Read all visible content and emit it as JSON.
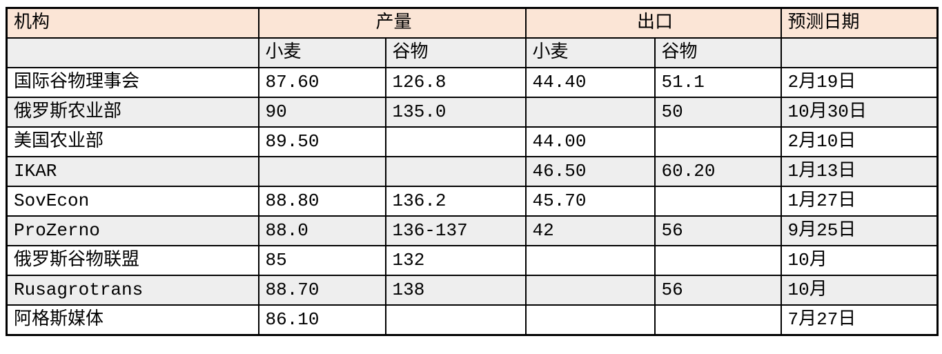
{
  "table": {
    "header": {
      "org": "机构",
      "production": "产量",
      "export": "出口",
      "forecast_date": "预测日期"
    },
    "subheader": {
      "production_wheat": "小麦",
      "production_grain": "谷物",
      "export_wheat": "小麦",
      "export_grain": "谷物"
    },
    "rows": [
      {
        "org": "国际谷物理事会",
        "production_wheat": "87.60",
        "production_grain": "126.8",
        "export_wheat": "44.40",
        "export_grain": "51.1",
        "date": "2月19日"
      },
      {
        "org": "俄罗斯农业部",
        "production_wheat": "90",
        "production_grain": "135.0",
        "export_wheat": "",
        "export_grain": "50",
        "date": "10月30日"
      },
      {
        "org": "美国农业部",
        "production_wheat": "89.50",
        "production_grain": "",
        "export_wheat": "44.00",
        "export_grain": "",
        "date": "2月10日"
      },
      {
        "org": "IKAR",
        "production_wheat": "",
        "production_grain": "",
        "export_wheat": "46.50",
        "export_grain": "60.20",
        "date": "1月13日"
      },
      {
        "org": "SovEcon",
        "production_wheat": "88.80",
        "production_grain": "136.2",
        "export_wheat": "45.70",
        "export_grain": "",
        "date": "1月27日"
      },
      {
        "org": "ProZerno",
        "production_wheat": "88.0",
        "production_grain": "136-137",
        "export_wheat": "42",
        "export_grain": "56",
        "date": "9月25日"
      },
      {
        "org": "俄罗斯谷物联盟",
        "production_wheat": "85",
        "production_grain": "132",
        "export_wheat": "",
        "export_grain": "",
        "date": "10月"
      },
      {
        "org": "Rusagrotrans",
        "production_wheat": "88.70",
        "production_grain": "138",
        "export_wheat": "",
        "export_grain": "56",
        "date": "10月"
      },
      {
        "org": "阿格斯媒体",
        "production_wheat": "86.10",
        "production_grain": "",
        "export_wheat": "",
        "export_grain": "",
        "date": "7月27日"
      }
    ],
    "colors": {
      "header_fill": "#fbe5d6",
      "subheader_fill": "#eeeeee",
      "row_alt_fill": "#eeeeee",
      "border": "#000000",
      "text": "#000000"
    }
  },
  "chart_data": {
    "type": "table",
    "title": "",
    "column_groups": [
      "机构",
      "产量",
      "产量",
      "出口",
      "出口",
      "预测日期"
    ],
    "columns": [
      "机构",
      "产量-小麦",
      "产量-谷物",
      "出口-小麦",
      "出口-谷物",
      "预测日期"
    ],
    "rows": [
      [
        "国际谷物理事会",
        "87.60",
        "126.8",
        "44.40",
        "51.1",
        "2月19日"
      ],
      [
        "俄罗斯农业部",
        "90",
        "135.0",
        "",
        "50",
        "10月30日"
      ],
      [
        "美国农业部",
        "89.50",
        "",
        "44.00",
        "",
        "2月10日"
      ],
      [
        "IKAR",
        "",
        "",
        "46.50",
        "60.20",
        "1月13日"
      ],
      [
        "SovEcon",
        "88.80",
        "136.2",
        "45.70",
        "",
        "1月27日"
      ],
      [
        "ProZerno",
        "88.0",
        "136-137",
        "42",
        "56",
        "9月25日"
      ],
      [
        "俄罗斯谷物联盟",
        "85",
        "132",
        "",
        "",
        "10月"
      ],
      [
        "Rusagrotrans",
        "88.70",
        "138",
        "",
        "56",
        "10月"
      ],
      [
        "阿格斯媒体",
        "86.10",
        "",
        "",
        "",
        "7月27日"
      ]
    ]
  }
}
